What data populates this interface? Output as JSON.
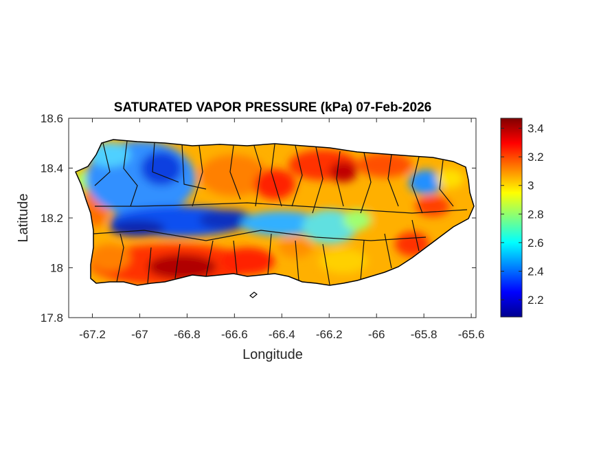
{
  "chart_data": {
    "type": "heatmap",
    "title": "SATURATED VAPOR PRESSURE (kPa) 07-Feb-2026",
    "xlabel": "Longitude",
    "ylabel": "Latitude",
    "xlim": [
      -67.3,
      -65.58
    ],
    "ylim": [
      17.8,
      18.6
    ],
    "xticks": [
      -67.2,
      -67,
      -66.8,
      -66.6,
      -66.4,
      -66.2,
      -66,
      -65.8,
      -65.6
    ],
    "xtick_labels": [
      "-67.2",
      "-67",
      "-66.8",
      "-66.6",
      "-66.4",
      "-66.2",
      "-66",
      "-65.8",
      "-65.6"
    ],
    "yticks": [
      17.8,
      18,
      18.2,
      18.4,
      18.6
    ],
    "ytick_labels": [
      "17.8",
      "18",
      "18.2",
      "18.4",
      "18.6"
    ],
    "colorbar": {
      "label": "",
      "range": [
        2.08,
        3.47
      ],
      "colormap": "jet",
      "ticks": [
        2.2,
        2.4,
        2.6,
        2.8,
        3,
        3.2,
        3.4
      ],
      "tick_labels": [
        "2.2",
        "2.4",
        "2.6",
        "2.8",
        "3",
        "3.2",
        "3.4"
      ]
    },
    "grid": false,
    "region": "Puerto Rico (municipality boundaries overlaid)"
  }
}
